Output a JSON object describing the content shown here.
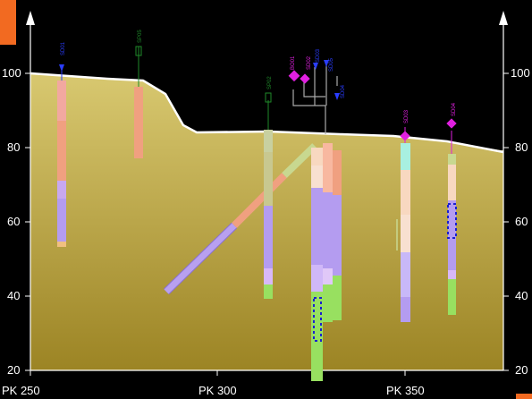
{
  "colors": {
    "background": "#000000",
    "soil_top": "#c8b45a",
    "soil_bottom": "#a88c28",
    "surface_line": "#ffffff",
    "accent_corner": "#f26a21",
    "blue_tag": "#2a3dff",
    "green_tag": "#1f8a2a",
    "magenta_tag": "#e020e0"
  },
  "axes": {
    "left_ticks": [
      "100",
      "80",
      "60",
      "40",
      "20"
    ],
    "right_ticks": [
      "100",
      "80",
      "60",
      "40",
      "20"
    ],
    "x_ticks": [
      "PK 250",
      "PK 300",
      "PK 350"
    ]
  },
  "boreholes": [
    {
      "tag": "SD01",
      "tag_color": "blue"
    },
    {
      "tag": "SP05",
      "tag_color": "green"
    },
    {
      "tag": "SP02",
      "tag_color": "green"
    },
    {
      "tag": "BO01",
      "tag_color": "magenta"
    },
    {
      "tag": "SD02",
      "tag_color": "magenta"
    },
    {
      "tag": "SD03",
      "tag_color": "blue"
    },
    {
      "tag": "SD05",
      "tag_color": "blue"
    },
    {
      "tag": "SD04",
      "tag_color": "blue"
    },
    {
      "tag": "SD03",
      "tag_color": "magenta"
    },
    {
      "tag": "SD04",
      "tag_color": "magenta"
    }
  ],
  "icons": {
    "up_arrow_left": "up-arrow-icon",
    "up_arrow_right": "up-arrow-icon"
  }
}
